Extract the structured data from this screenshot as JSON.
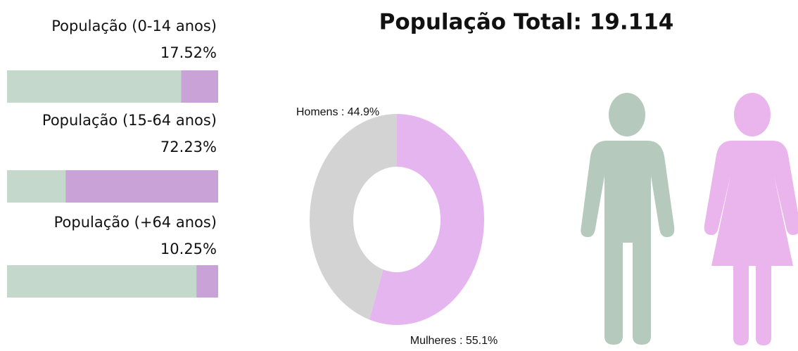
{
  "title": "População Total: 19.114",
  "chart_data": [
    {
      "type": "bar",
      "title": "População (0-14 anos)",
      "values": [
        17.52
      ],
      "value_labels": [
        "17.52%"
      ],
      "xlim": [
        0,
        100
      ],
      "color": "#c9a2d7",
      "background": "#c5d8cc"
    },
    {
      "type": "bar",
      "title": "População (15-64 anos)",
      "values": [
        72.23
      ],
      "value_labels": [
        "72.23%"
      ],
      "xlim": [
        0,
        100
      ],
      "color": "#c9a2d7",
      "background": "#c5d8cc"
    },
    {
      "type": "bar",
      "title": "População (+64 anos)",
      "values": [
        10.25
      ],
      "value_labels": [
        "10.25%"
      ],
      "xlim": [
        0,
        100
      ],
      "color": "#c9a2d7",
      "background": "#c5d8cc"
    },
    {
      "type": "pie",
      "values": [
        55.1,
        44.9
      ],
      "value_labels": [
        "Mulheres : 55.1%",
        "Homens : 44.9%"
      ],
      "colors": [
        "#e5b5f0",
        "#d3d3d3"
      ]
    }
  ]
}
